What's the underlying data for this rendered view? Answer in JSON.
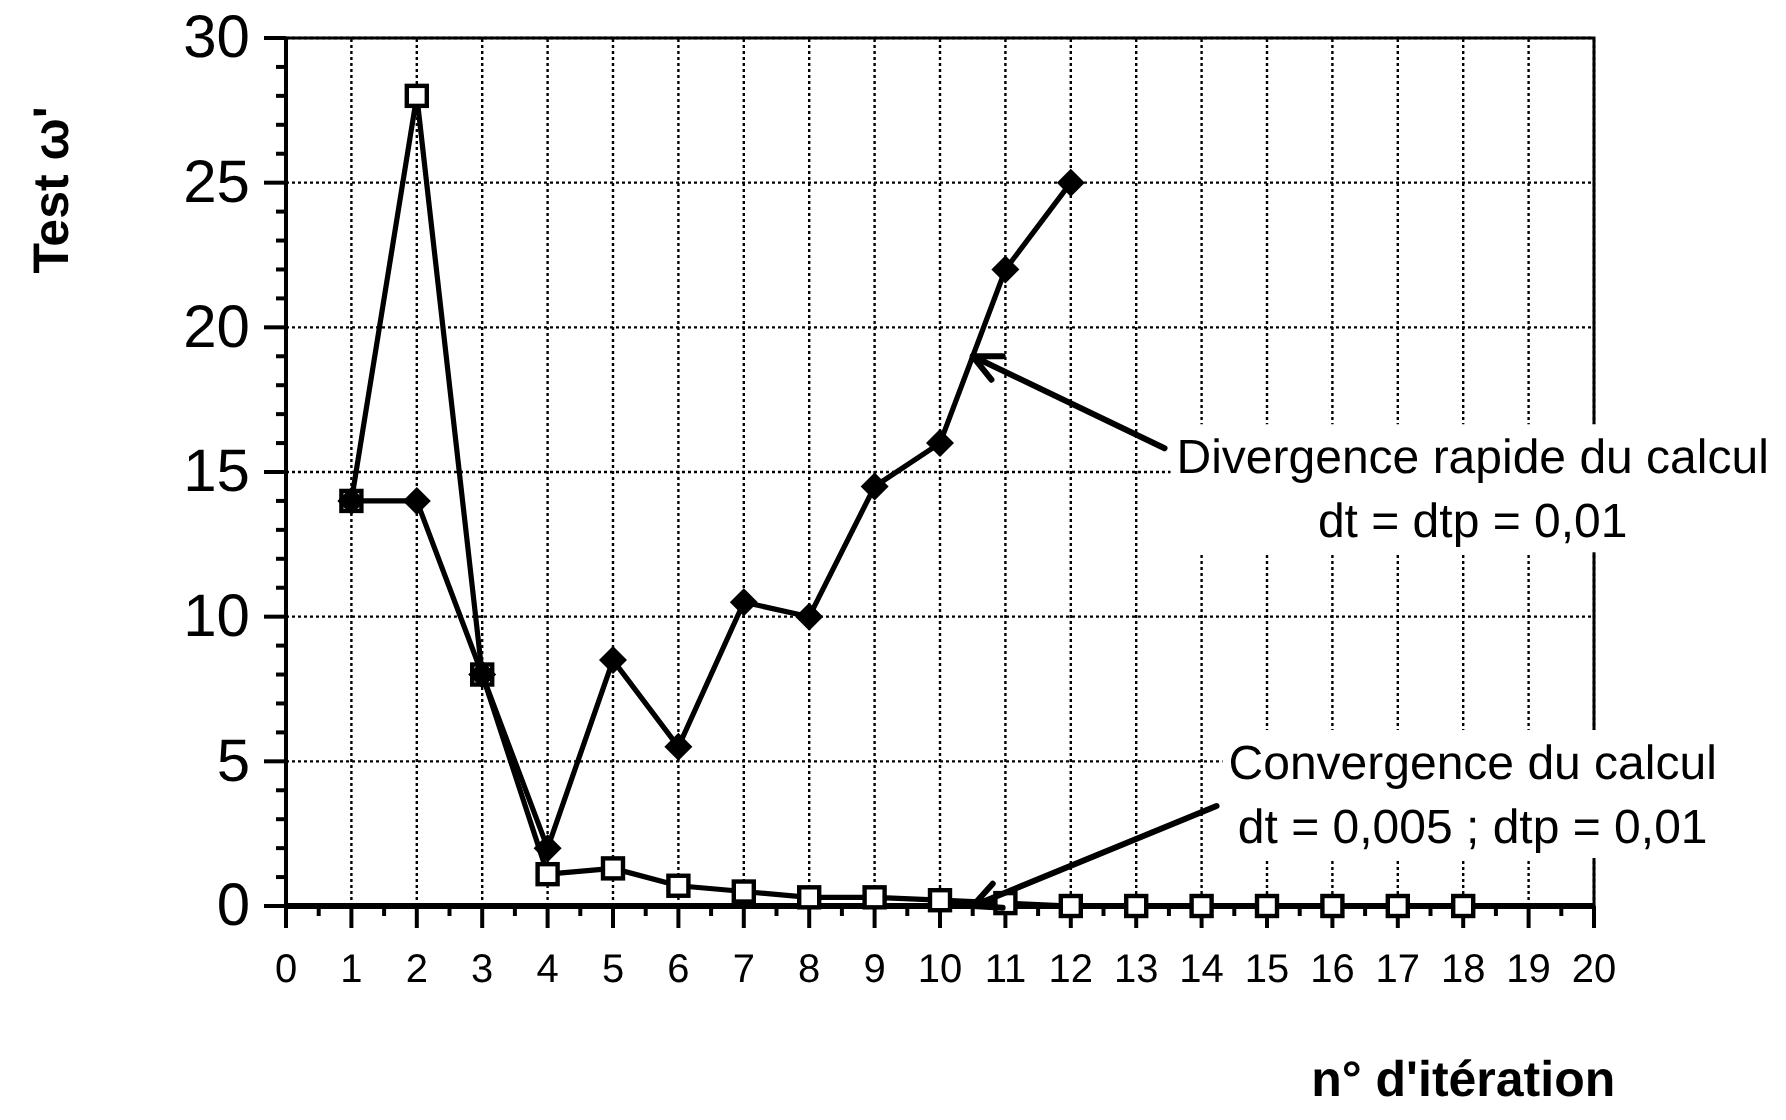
{
  "chart_data": {
    "type": "line",
    "xlabel": "n° d'itération",
    "ylabel": "Test ω'",
    "series": [
      {
        "x": [
          1,
          2,
          3,
          4,
          5,
          6,
          7,
          8,
          9,
          10,
          11,
          12,
          13,
          14,
          15,
          16,
          17,
          18
        ],
        "color": "#000000",
        "marker": "square",
        "values": [
          14,
          28,
          8,
          1.1,
          1.3,
          0.7,
          0.5,
          0.3,
          0.3,
          0.2,
          0.1,
          0,
          0,
          0,
          0,
          0,
          0,
          0
        ]
      },
      {
        "x": [
          1,
          2,
          3,
          4,
          5,
          6,
          7,
          8,
          9,
          10,
          11,
          12
        ],
        "color": "#000000",
        "marker": "diamond",
        "values": [
          14,
          14,
          8,
          2,
          8.5,
          5.5,
          10.5,
          10,
          14.5,
          16,
          22,
          25
        ]
      }
    ],
    "xlim": [
      0,
      20
    ],
    "ylim": [
      0,
      30
    ],
    "xticks": [
      0,
      {
        "value": 0.5,
        "label": null
      },
      1,
      {
        "value": 1.5,
        "label": null
      },
      2,
      {
        "value": 2.5,
        "label": null
      },
      3,
      {
        "value": 3.5,
        "label": null
      },
      4,
      {
        "value": 4.5,
        "label": null
      },
      5,
      {
        "value": 5.5,
        "label": null
      },
      6,
      {
        "value": 6.5,
        "label": null
      },
      7,
      {
        "value": 7.5,
        "label": null
      },
      8,
      {
        "value": 8.5,
        "label": null
      },
      9,
      {
        "value": 9.5,
        "label": null
      },
      10,
      {
        "value": 10.5,
        "label": null
      },
      11,
      {
        "value": 11.5,
        "label": null
      },
      12,
      {
        "value": 12.5,
        "label": null
      },
      13,
      {
        "value": 13.5,
        "label": null
      },
      14,
      {
        "value": 14.5,
        "label": null
      },
      15,
      {
        "value": 15.5,
        "label": null
      },
      16,
      {
        "value": 16.5,
        "label": null
      },
      17,
      {
        "value": 17.5,
        "label": null
      },
      18,
      {
        "value": 18.5,
        "label": null
      },
      19,
      {
        "value": 19.5,
        "label": null
      },
      20
    ],
    "yticks": [
      0,
      {
        "value": 1,
        "label": null
      },
      {
        "value": 2,
        "label": null
      },
      {
        "value": 3,
        "label": null
      },
      {
        "value": 4,
        "label": null
      },
      5,
      {
        "value": 6,
        "label": null
      },
      {
        "value": 7,
        "label": null
      },
      {
        "value": 8,
        "label": null
      },
      {
        "value": 9,
        "label": null
      },
      10,
      {
        "value": 11,
        "label": null
      },
      {
        "value": 12,
        "label": null
      },
      {
        "value": 13,
        "label": null
      },
      {
        "value": 14,
        "label": null
      },
      15,
      {
        "value": 16,
        "label": null
      },
      {
        "value": 17,
        "label": null
      },
      {
        "value": 18,
        "label": null
      },
      {
        "value": 19,
        "label": null
      },
      20,
      {
        "value": 21,
        "label": null
      },
      {
        "value": 22,
        "label": null
      },
      {
        "value": 23,
        "label": null
      },
      {
        "value": 24,
        "label": null
      },
      25,
      {
        "value": 26,
        "label": null
      },
      {
        "value": 27,
        "label": null
      },
      {
        "value": 28,
        "label": null
      },
      {
        "value": 29,
        "label": null
      },
      30
    ],
    "grid": true,
    "line_style": "solid",
    "annotations": [
      {
        "text": "Divergence rapide du calcul\ndt = dtp = 0,01",
        "x": 10.5,
        "y": 19
      },
      {
        "text": "Convergence du calcul\ndt = 0,005 ; dtp = 0,01",
        "x": 10.5,
        "y": 0
      }
    ]
  }
}
